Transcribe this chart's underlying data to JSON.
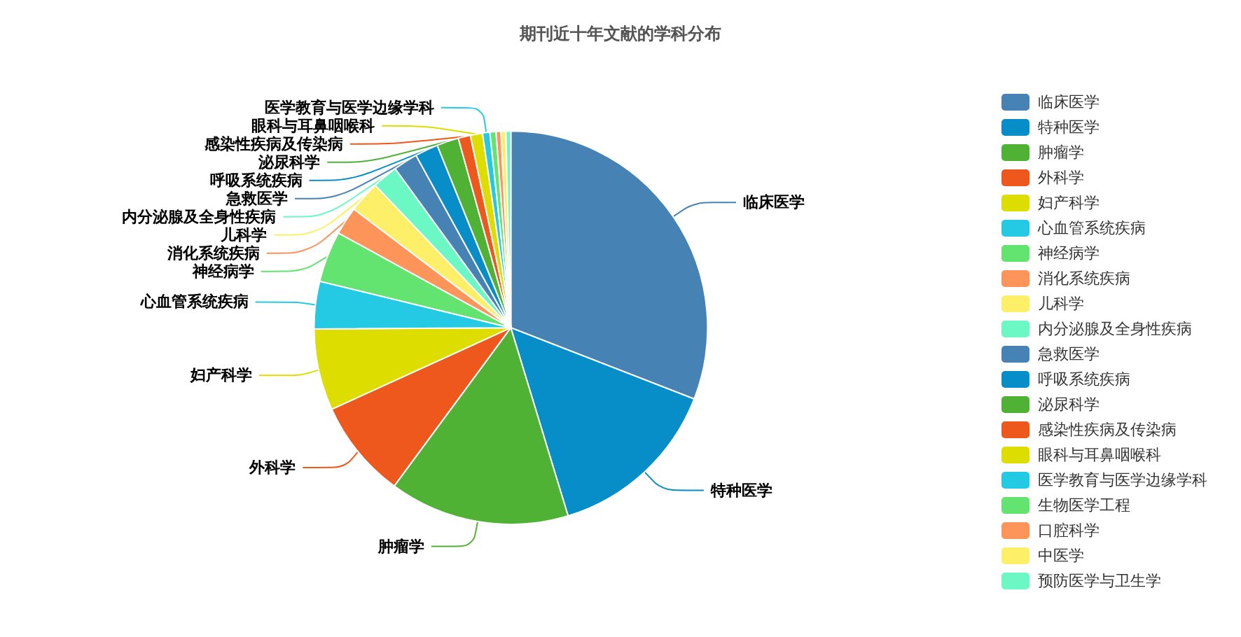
{
  "chart_data": {
    "type": "pie",
    "title": "期刊近十年文献的学科分布",
    "categories": [
      "临床医学",
      "特种医学",
      "肿瘤学",
      "外科学",
      "妇产科学",
      "心血管系统疾病",
      "神经病学",
      "消化系统疾病",
      "儿科学",
      "内分泌腺及全身性疾病",
      "急救医学",
      "呼吸系统疾病",
      "泌尿科学",
      "感染性疾病及传染病",
      "眼科与耳鼻咽喉科",
      "医学教育与医学边缘学科",
      "生物医学工程",
      "口腔科学",
      "中医学",
      "预防医学与卫生学"
    ],
    "values": [
      30.9,
      14.4,
      14.8,
      8.1,
      6.7,
      3.9,
      4.2,
      2.3,
      2.6,
      2.1,
      2.0,
      1.9,
      1.8,
      1.0,
      1.0,
      0.6,
      0.5,
      0.4,
      0.4,
      0.4
    ],
    "colors": [
      "#4682b4",
      "#078dc8",
      "#4fb234",
      "#ee581d",
      "#dddd00",
      "#24cae3",
      "#63e36f",
      "#fd9459",
      "#fdef67",
      "#6cf8c5",
      "#4682b4",
      "#078dc8",
      "#4fb234",
      "#ee581d",
      "#dddd00",
      "#24cae3",
      "#63e36f",
      "#fd9459",
      "#fdef67",
      "#6cf8c5"
    ],
    "legend": "right"
  }
}
